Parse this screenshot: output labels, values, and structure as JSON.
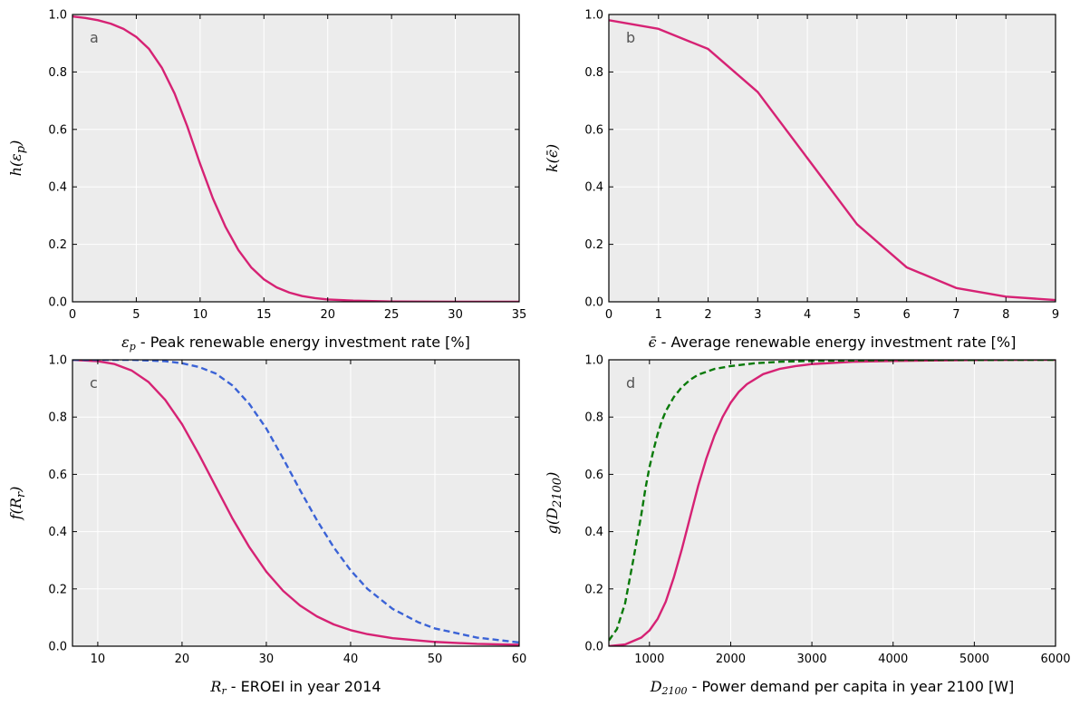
{
  "colors": {
    "background": "#ececec",
    "grid": "#ffffff",
    "magenta": "#d62274",
    "blue": "#3b63d6",
    "green": "#0a7a0a",
    "letter": "#555555"
  },
  "chart_data": [
    {
      "panel": "a",
      "type": "line",
      "xlabel_math": "ε",
      "xlabel_math_sub": "p",
      "xlabel_text": " - Peak renewable energy investment rate [%]",
      "ylabel_math": "h(ε",
      "ylabel_math_sub": "p",
      "ylabel_math_end": ")",
      "xlim": [
        0,
        35
      ],
      "ylim": [
        0,
        1
      ],
      "xticks": [
        "0",
        "5",
        "10",
        "15",
        "20",
        "25",
        "30",
        "35"
      ],
      "yticks": [
        "0.0",
        "0.2",
        "0.4",
        "0.6",
        "0.8",
        "1.0"
      ],
      "grid": true,
      "series": [
        {
          "style": "solid",
          "color": "#d62274",
          "x": [
            0,
            1,
            2,
            3,
            4,
            5,
            6,
            7,
            8,
            9,
            10,
            11,
            12,
            13,
            14,
            15,
            16,
            17,
            18,
            19,
            20,
            22,
            25,
            30,
            35
          ],
          "y": [
            0.993,
            0.988,
            0.98,
            0.968,
            0.95,
            0.922,
            0.88,
            0.815,
            0.725,
            0.61,
            0.48,
            0.36,
            0.26,
            0.18,
            0.12,
            0.078,
            0.05,
            0.032,
            0.02,
            0.013,
            0.008,
            0.004,
            0.001,
            0.0,
            0.0
          ]
        }
      ]
    },
    {
      "panel": "b",
      "type": "line",
      "xlabel_math": "ϵ̄",
      "xlabel_math_sub": "",
      "xlabel_text": " - Average renewable energy investment rate [%]",
      "ylabel_math": "k(ϵ̄",
      "ylabel_math_sub": "",
      "ylabel_math_end": ")",
      "xlim": [
        0,
        9
      ],
      "ylim": [
        0,
        1
      ],
      "xticks": [
        "0",
        "1",
        "2",
        "3",
        "4",
        "5",
        "6",
        "7",
        "8",
        "9"
      ],
      "yticks": [
        "0.0",
        "0.2",
        "0.4",
        "0.6",
        "0.8",
        "1.0"
      ],
      "grid": true,
      "series": [
        {
          "style": "solid",
          "color": "#d62274",
          "x": [
            0,
            1,
            2,
            3,
            4,
            5,
            6,
            7,
            8,
            9
          ],
          "y": [
            0.98,
            0.95,
            0.88,
            0.73,
            0.5,
            0.27,
            0.12,
            0.048,
            0.018,
            0.006
          ]
        }
      ]
    },
    {
      "panel": "c",
      "type": "line",
      "xlabel_math": "R",
      "xlabel_math_sub": "r",
      "xlabel_text": " - EROEI in year 2014",
      "ylabel_math": "f(R",
      "ylabel_math_sub": "r",
      "ylabel_math_end": ")",
      "xlim": [
        7,
        60
      ],
      "ylim": [
        0,
        1
      ],
      "xticks": [
        "10",
        "20",
        "30",
        "40",
        "50",
        "60"
      ],
      "yticks": [
        "0.0",
        "0.2",
        "0.4",
        "0.6",
        "0.8",
        "1.0"
      ],
      "grid": true,
      "series": [
        {
          "style": "solid",
          "color": "#d62274",
          "x": [
            7,
            10,
            12,
            14,
            16,
            18,
            20,
            22,
            24,
            26,
            28,
            30,
            32,
            34,
            36,
            38,
            40,
            42,
            45,
            50,
            55,
            60
          ],
          "y": [
            1.0,
            0.995,
            0.985,
            0.963,
            0.923,
            0.86,
            0.775,
            0.67,
            0.557,
            0.445,
            0.345,
            0.26,
            0.193,
            0.142,
            0.104,
            0.076,
            0.056,
            0.042,
            0.028,
            0.015,
            0.008,
            0.005
          ]
        },
        {
          "style": "dashed",
          "color": "#3b63d6",
          "x": [
            7,
            10,
            14,
            18,
            20,
            22,
            24,
            26,
            28,
            30,
            32,
            34,
            36,
            38,
            40,
            42,
            45,
            48,
            50,
            55,
            60
          ],
          "y": [
            1.0,
            1.0,
            1.0,
            0.995,
            0.988,
            0.975,
            0.952,
            0.91,
            0.845,
            0.76,
            0.655,
            0.545,
            0.44,
            0.345,
            0.265,
            0.2,
            0.13,
            0.084,
            0.062,
            0.03,
            0.013
          ]
        }
      ]
    },
    {
      "panel": "d",
      "type": "line",
      "xlabel_math": "D",
      "xlabel_math_sub": "2100",
      "xlabel_text": " - Power demand per capita in year 2100 [W]",
      "ylabel_math": "g(D",
      "ylabel_math_sub": "2100",
      "ylabel_math_end": ")",
      "xlim": [
        500,
        6000
      ],
      "ylim": [
        0,
        1
      ],
      "xticks": [
        "1000",
        "2000",
        "3000",
        "4000",
        "5000",
        "6000"
      ],
      "yticks": [
        "0.0",
        "0.2",
        "0.4",
        "0.6",
        "0.8",
        "1.0"
      ],
      "grid": true,
      "series": [
        {
          "style": "solid",
          "color": "#d62274",
          "x": [
            500,
            700,
            900,
            1000,
            1100,
            1200,
            1300,
            1400,
            1500,
            1600,
            1700,
            1800,
            1900,
            2000,
            2100,
            2200,
            2400,
            2600,
            2800,
            3000,
            3500,
            4000,
            5000,
            6000
          ],
          "y": [
            0.0,
            0.006,
            0.03,
            0.055,
            0.095,
            0.155,
            0.24,
            0.34,
            0.45,
            0.56,
            0.655,
            0.735,
            0.8,
            0.85,
            0.888,
            0.915,
            0.95,
            0.968,
            0.978,
            0.985,
            0.993,
            0.996,
            0.999,
            1.0
          ]
        },
        {
          "style": "dashed",
          "color": "#0a7a0a",
          "x": [
            500,
            600,
            700,
            800,
            900,
            950,
            1000,
            1050,
            1100,
            1150,
            1200,
            1300,
            1400,
            1500,
            1600,
            1800,
            2000,
            2300,
            2600,
            3000,
            4000,
            6000
          ],
          "y": [
            0.02,
            0.06,
            0.15,
            0.3,
            0.46,
            0.55,
            0.625,
            0.685,
            0.74,
            0.785,
            0.82,
            0.87,
            0.905,
            0.93,
            0.948,
            0.968,
            0.978,
            0.988,
            0.993,
            0.996,
            0.999,
            1.0
          ]
        }
      ]
    }
  ]
}
